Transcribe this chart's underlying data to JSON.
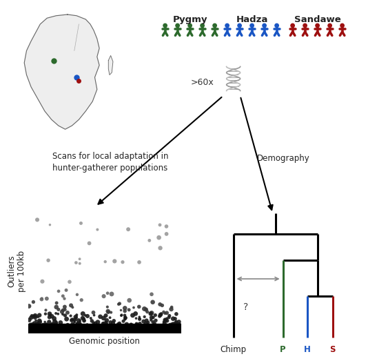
{
  "bg_color": "#ffffff",
  "pygmy_color": "#2d6a2d",
  "hadza_color": "#1a56c4",
  "sandawe_color": "#9e1010",
  "fig_width": 5.04,
  "fig_height": 5.04,
  "population_labels": [
    "Pygmy",
    "Hadza",
    "Sandawe"
  ],
  "n_people": 5,
  "dna_text": ">60x",
  "left_arrow_text": "Scans for local adaptation in\nhunter-gatherer populations",
  "right_arrow_text": "Demography",
  "scatter_xlabel": "Genomic position",
  "scatter_ylabel": "Outliers\nper 100kb",
  "chimp_label": "Chimp",
  "p_label": "P",
  "h_label": "H",
  "s_label": "S"
}
